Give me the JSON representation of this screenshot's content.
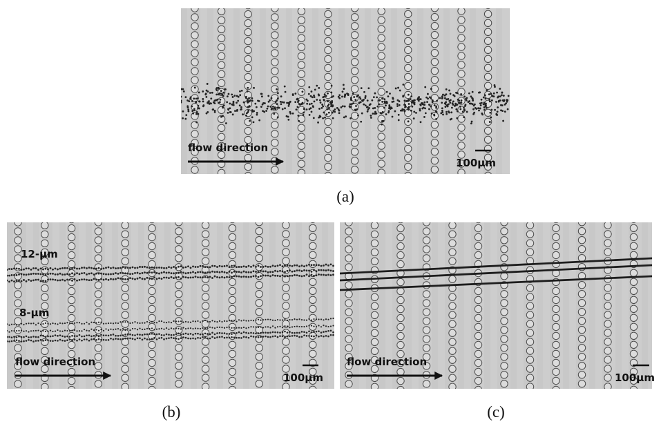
{
  "figure": {
    "panels": [
      {
        "caption": "(a)",
        "flow_label": "flow direction",
        "scale_label": "100μm"
      },
      {
        "caption": "(b)",
        "flow_label": "flow direction",
        "scale_label": "100μm",
        "particle_labels": [
          "12-μm",
          "8-μm"
        ]
      },
      {
        "caption": "(c)",
        "flow_label": "flow direction",
        "scale_label": "100μm"
      }
    ]
  }
}
